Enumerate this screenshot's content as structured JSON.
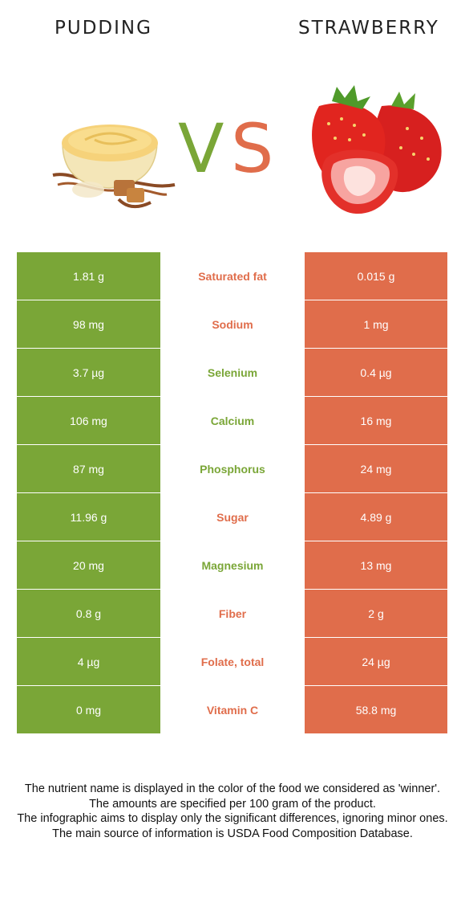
{
  "header": {
    "food_left": "PUDDING",
    "food_right": "STRAWBERRY",
    "vs_v": "V",
    "vs_s": "S"
  },
  "colors": {
    "left_accent": "#7aa637",
    "right_accent": "#e06d4b"
  },
  "rows": [
    {
      "left": "1.81 g",
      "nutrient": "Saturated fat",
      "right": "0.015 g",
      "winner": "right"
    },
    {
      "left": "98 mg",
      "nutrient": "Sodium",
      "right": "1 mg",
      "winner": "right"
    },
    {
      "left": "3.7 µg",
      "nutrient": "Selenium",
      "right": "0.4 µg",
      "winner": "left"
    },
    {
      "left": "106 mg",
      "nutrient": "Calcium",
      "right": "16 mg",
      "winner": "left"
    },
    {
      "left": "87 mg",
      "nutrient": "Phosphorus",
      "right": "24 mg",
      "winner": "left"
    },
    {
      "left": "11.96 g",
      "nutrient": "Sugar",
      "right": "4.89 g",
      "winner": "right"
    },
    {
      "left": "20 mg",
      "nutrient": "Magnesium",
      "right": "13 mg",
      "winner": "left"
    },
    {
      "left": "0.8 g",
      "nutrient": "Fiber",
      "right": "2 g",
      "winner": "right"
    },
    {
      "left": "4 µg",
      "nutrient": "Folate, total",
      "right": "24 µg",
      "winner": "right"
    },
    {
      "left": "0 mg",
      "nutrient": "Vitamin C",
      "right": "58.8 mg",
      "winner": "right"
    }
  ],
  "footer": {
    "line1": "The nutrient name is displayed in the color of the food we considered as 'winner'.",
    "line2": "The amounts are specified per 100 gram of the product.",
    "line3": "The infographic aims to display only the significant differences, ignoring minor ones.",
    "line4": "The main source of information is USDA Food Composition Database."
  }
}
